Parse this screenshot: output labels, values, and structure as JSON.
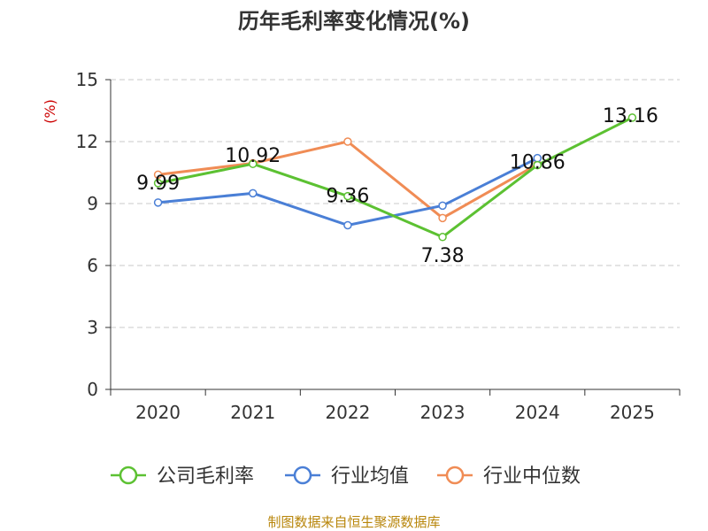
{
  "chart_data": {
    "type": "line",
    "title": "历年毛利率变化情况(%)",
    "ylabel": "(%)",
    "categories": [
      "2020",
      "2021",
      "2022",
      "2023",
      "2024",
      "2025"
    ],
    "ylim": [
      0,
      15
    ],
    "yticks": [
      0,
      3,
      6,
      9,
      12,
      15
    ],
    "grid": true,
    "legend_position": "bottom",
    "series": [
      {
        "name": "公司毛利率",
        "color": "#5cc132",
        "values": [
          9.99,
          10.92,
          9.36,
          7.38,
          10.86,
          13.16
        ],
        "labels": [
          "9.99",
          "10.92",
          "9.36",
          "7.38",
          "10.86",
          "13.16"
        ]
      },
      {
        "name": "行业均值",
        "color": "#4a7fd6",
        "values": [
          9.05,
          9.5,
          7.95,
          8.9,
          11.2,
          null
        ]
      },
      {
        "name": "行业中位数",
        "color": "#f08c55",
        "values": [
          10.4,
          10.95,
          12.0,
          8.3,
          10.9,
          null
        ]
      }
    ]
  },
  "source": "制图数据来自恒生聚源数据库"
}
